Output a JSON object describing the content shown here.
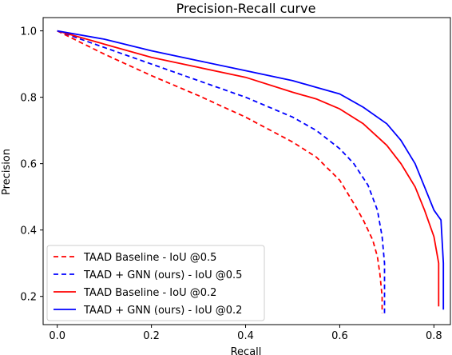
{
  "chart_data": {
    "type": "line",
    "title": "Precision-Recall curve",
    "xlabel": "Recall",
    "ylabel": "Precision",
    "xlim": [
      -0.03,
      0.835
    ],
    "ylim": [
      0.115,
      1.04
    ],
    "xticks": [
      {
        "value": 0.0,
        "label": "0.0"
      },
      {
        "value": 0.2,
        "label": "0.2"
      },
      {
        "value": 0.4,
        "label": "0.4"
      },
      {
        "value": 0.6,
        "label": "0.6"
      },
      {
        "value": 0.8,
        "label": "0.8"
      }
    ],
    "yticks": [
      {
        "value": 0.2,
        "label": "0.2"
      },
      {
        "value": 0.4,
        "label": "0.4"
      },
      {
        "value": 0.6,
        "label": "0.6"
      },
      {
        "value": 0.8,
        "label": "0.8"
      },
      {
        "value": 1.0,
        "label": "1.0"
      }
    ],
    "grid": false,
    "legend_position": "lower-left",
    "series": [
      {
        "name": "TAAD Baseline - IoU @0.5",
        "color": "#ff0000",
        "dash": "dashed",
        "x": [
          0.0,
          0.1,
          0.2,
          0.3,
          0.4,
          0.5,
          0.55,
          0.6,
          0.63,
          0.65,
          0.67,
          0.68,
          0.685,
          0.69,
          0.69
        ],
        "y": [
          1.0,
          0.93,
          0.865,
          0.805,
          0.74,
          0.665,
          0.62,
          0.55,
          0.48,
          0.43,
          0.37,
          0.32,
          0.27,
          0.2,
          0.15
        ]
      },
      {
        "name": "TAAD + GNN (ours) - IoU @0.5",
        "color": "#0000ff",
        "dash": "dashed",
        "x": [
          0.0,
          0.1,
          0.2,
          0.3,
          0.4,
          0.5,
          0.55,
          0.6,
          0.63,
          0.66,
          0.68,
          0.69,
          0.695,
          0.695,
          0.695
        ],
        "y": [
          1.0,
          0.95,
          0.9,
          0.85,
          0.8,
          0.74,
          0.7,
          0.645,
          0.6,
          0.535,
          0.46,
          0.38,
          0.3,
          0.2,
          0.14
        ]
      },
      {
        "name": "TAAD Baseline - IoU @0.2",
        "color": "#ff0000",
        "dash": "solid",
        "x": [
          0.0,
          0.1,
          0.2,
          0.3,
          0.4,
          0.5,
          0.55,
          0.6,
          0.65,
          0.7,
          0.73,
          0.76,
          0.78,
          0.8,
          0.81,
          0.81,
          0.81
        ],
        "y": [
          1.0,
          0.96,
          0.92,
          0.89,
          0.86,
          0.815,
          0.795,
          0.765,
          0.72,
          0.655,
          0.6,
          0.53,
          0.46,
          0.38,
          0.3,
          0.22,
          0.17
        ]
      },
      {
        "name": "TAAD + GNN (ours) - IoU @0.2",
        "color": "#0000ff",
        "dash": "solid",
        "x": [
          0.0,
          0.1,
          0.2,
          0.3,
          0.4,
          0.5,
          0.55,
          0.6,
          0.65,
          0.7,
          0.73,
          0.76,
          0.78,
          0.8,
          0.81,
          0.815,
          0.82,
          0.82
        ],
        "y": [
          1.0,
          0.975,
          0.94,
          0.91,
          0.88,
          0.85,
          0.83,
          0.81,
          0.77,
          0.72,
          0.67,
          0.6,
          0.53,
          0.46,
          0.44,
          0.43,
          0.3,
          0.16
        ]
      }
    ]
  }
}
